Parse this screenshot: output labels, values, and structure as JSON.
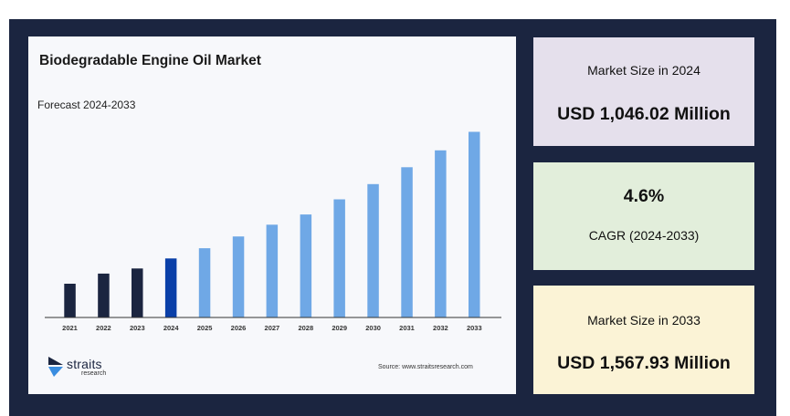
{
  "chart_data": {
    "type": "bar",
    "title": "Biodegradable Engine Oil Market",
    "subtitle": "Forecast 2024-2033",
    "categories": [
      "2021",
      "2022",
      "2023",
      "2024",
      "2025",
      "2026",
      "2027",
      "2028",
      "2029",
      "2030",
      "2031",
      "2032",
      "2033"
    ],
    "values": [
      20,
      26,
      29,
      35,
      41,
      48,
      55,
      61,
      70,
      79,
      89,
      99,
      110
    ],
    "bar_colors": [
      "#1b2540",
      "#1b2540",
      "#1b2540",
      "#0a3fa8",
      "#6fa8e6",
      "#6fa8e6",
      "#6fa8e6",
      "#6fa8e6",
      "#6fa8e6",
      "#6fa8e6",
      "#6fa8e6",
      "#6fa8e6",
      "#6fa8e6"
    ],
    "ylim": [
      0,
      120
    ],
    "grid": false,
    "xlabel": "",
    "ylabel": ""
  },
  "branding": {
    "logo_word": "straits",
    "logo_sub": "research",
    "source": "Source: www.straitsresearch.com"
  },
  "stats": {
    "size_2024_label": "Market Size in 2024",
    "size_2024_value": "USD 1,046.02 Million",
    "cagr_value": "4.6%",
    "cagr_label": "CAGR (2024-2033)",
    "size_2033_label": "Market Size in 2033",
    "size_2033_value": "USD 1,567.93 Million"
  },
  "colors": {
    "frame": "#1b2540",
    "card_2024": "#e5e0ec",
    "card_cagr": "#e2eedb",
    "card_2033": "#fbf3d6"
  }
}
